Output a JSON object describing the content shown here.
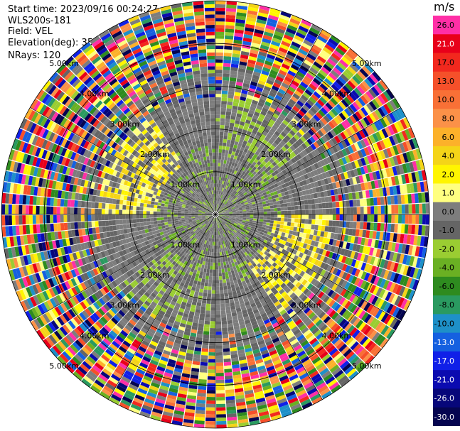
{
  "info": {
    "start_time": "Start time: 2023/09/16 00:24:27",
    "instrument": "WLS200s-181",
    "field": "Field: VEL",
    "elevation": "Elevation(deg): 35.30",
    "nrays": "NRays: 120"
  },
  "chart_data": {
    "type": "heatmap",
    "projection": "polar",
    "colorbar_unit": "m/s",
    "colorbar_levels": [
      {
        "label": "26.0",
        "color": "#ff2fa6"
      },
      {
        "label": "21.0",
        "color": "#e8001a"
      },
      {
        "label": "17.0",
        "color": "#f2281e"
      },
      {
        "label": "13.0",
        "color": "#f5502a"
      },
      {
        "label": "10.0",
        "color": "#f87036"
      },
      {
        "label": "8.0",
        "color": "#fb9148"
      },
      {
        "label": "6.0",
        "color": "#fcb12a"
      },
      {
        "label": "4.0",
        "color": "#f4d418"
      },
      {
        "label": "2.0",
        "color": "#fff500"
      },
      {
        "label": "1.0",
        "color": "#ffff80"
      },
      {
        "label": "0.0",
        "color": "#7d7d7d"
      },
      {
        "label": "-1.0",
        "color": "#656565"
      },
      {
        "label": "-2.0",
        "color": "#9acd32"
      },
      {
        "label": "-4.0",
        "color": "#6ab023"
      },
      {
        "label": "-6.0",
        "color": "#2e8b1f"
      },
      {
        "label": "-8.0",
        "color": "#2a9a60"
      },
      {
        "label": "-10.0",
        "color": "#1e90c8"
      },
      {
        "label": "-13.0",
        "color": "#1560e0"
      },
      {
        "label": "-17.0",
        "color": "#1020e8"
      },
      {
        "label": "-21.0",
        "color": "#0b0bb0"
      },
      {
        "label": "-26.0",
        "color": "#07077a"
      },
      {
        "label": "-30.0",
        "color": "#050550"
      }
    ],
    "rings": [
      {
        "km": 1,
        "label": "1.00km"
      },
      {
        "km": 2,
        "label": "2.00km"
      },
      {
        "km": 3,
        "label": "3.00km"
      },
      {
        "km": 4,
        "label": "4.00km"
      },
      {
        "km": 5,
        "label": "5.00km"
      }
    ],
    "max_range_km": 5,
    "n_rays": 120,
    "spoke_angles_deg": [
      0,
      30,
      60,
      90,
      120,
      150,
      180,
      210,
      240,
      270,
      300,
      330
    ]
  }
}
